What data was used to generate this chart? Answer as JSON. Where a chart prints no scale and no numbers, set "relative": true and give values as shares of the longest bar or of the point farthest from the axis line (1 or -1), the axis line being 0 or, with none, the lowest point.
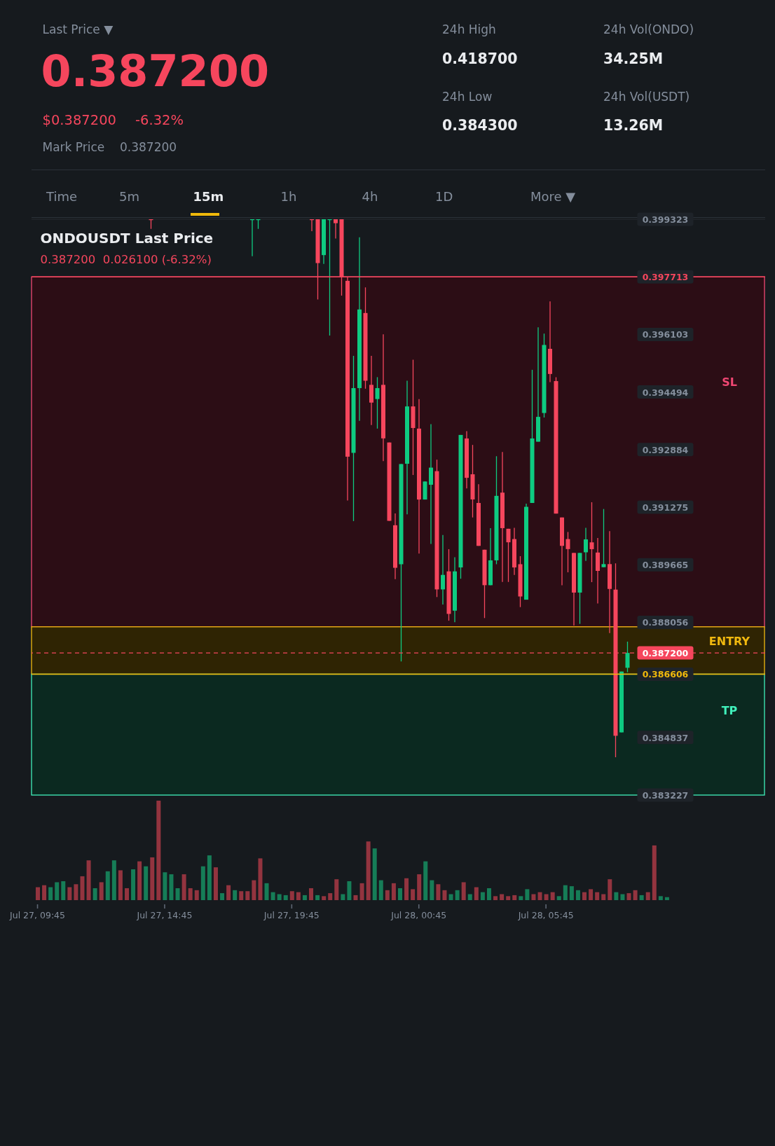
{
  "chart_data": [
    {
      "type": "other",
      "annotations": [
        "Last Price ▼",
        "0.387200",
        "$0.387200",
        "-6.32%",
        "Mark Price",
        "0.387200",
        "24h High",
        "0.418700",
        "24h Vol(ONDO)",
        "34.25M",
        "24h Low",
        "0.384300",
        "24h Vol(USDT)",
        "13.26M",
        "Time",
        "5m",
        "15m",
        "1h",
        "4h",
        "1D",
        "More ▼"
      ]
    },
    {
      "type": "candlestick",
      "title": "ONDOUSDT Last Price",
      "subtitle": "0.387200  0.026100 (-6.32%)",
      "categories": [
        null,
        null,
        null,
        null,
        null,
        null,
        null,
        null,
        null,
        null,
        null,
        null,
        null,
        null,
        null,
        null,
        null,
        null,
        null,
        null,
        null,
        null,
        null,
        null,
        null,
        null,
        null,
        null,
        null,
        null,
        null,
        null,
        null,
        null,
        null,
        null,
        null,
        null,
        null,
        null,
        null,
        null,
        null,
        null,
        null,
        null,
        null,
        null,
        null,
        null,
        null,
        null,
        null,
        null,
        null,
        null,
        null,
        null,
        null,
        null,
        null,
        null,
        null,
        null,
        null,
        null,
        null,
        null,
        null,
        null,
        null,
        null,
        null,
        null,
        null,
        null,
        null,
        null,
        null,
        null,
        null,
        null,
        null,
        null,
        null,
        null,
        null,
        null,
        null,
        null,
        null,
        null,
        null,
        null,
        null,
        null,
        null,
        null,
        null,
        null
      ],
      "ohlc": [
        null,
        null,
        null,
        null,
        null,
        null,
        null,
        null,
        null,
        null,
        null,
        null,
        null,
        null,
        null,
        null,
        null,
        null,
        null,
        [
          0.399323,
          0.399323,
          0.399056,
          0.399323
        ],
        null,
        null,
        null,
        null,
        null,
        null,
        null,
        null,
        null,
        null,
        null,
        null,
        null,
        null,
        null,
        null,
        [
          0.399323,
          0.399323,
          0.398291,
          0.399323
        ],
        [
          0.399323,
          0.399323,
          0.399056,
          0.399323
        ],
        null,
        null,
        null,
        null,
        null,
        null,
        null,
        null,
        [
          0.399323,
          0.399323,
          0.39899,
          0.399323
        ],
        [
          0.399323,
          0.399323,
          0.397082,
          0.398098
        ],
        [
          0.398321,
          0.399323,
          0.398073,
          0.399323
        ],
        [
          0.399323,
          0.399323,
          0.396074,
          0.399323
        ],
        [
          0.399323,
          0.399323,
          0.398784,
          0.399213
        ],
        [
          0.399323,
          0.399323,
          0.397189,
          0.397709
        ],
        [
          0.397602,
          0.397709,
          0.391463,
          0.392686
        ],
        [
          0.392793,
          0.395503,
          0.390885,
          0.394603
        ],
        [
          0.394603,
          0.398817,
          0.393686,
          0.396801
        ],
        [
          0.396702,
          0.39742,
          0.394586,
          0.394809
        ],
        [
          0.394694,
          0.395503,
          0.39357,
          0.394198
        ],
        [
          0.394297,
          0.394909,
          0.393471,
          0.394603
        ],
        [
          0.394694,
          0.396107,
          0.392562,
          0.393198
        ],
        [
          0.393083,
          0.393083,
          0.390893,
          0.390893
        ],
        [
          0.390769,
          0.3911,
          0.389265,
          0.38958
        ],
        [
          0.389679,
          0.39248,
          0.38696,
          0.39248
        ],
        [
          0.392488,
          0.394809,
          0.391075,
          0.394091
        ],
        [
          0.394091,
          0.395396,
          0.392174,
          0.393488
        ],
        [
          0.393471,
          0.394297,
          0.389976,
          0.391488
        ],
        [
          0.391488,
          0.391992,
          0.391488,
          0.391992
        ],
        [
          0.391901,
          0.393595,
          0.390249,
          0.39238
        ],
        [
          0.392281,
          0.392603,
          0.388762,
          0.388976
        ],
        [
          0.388976,
          0.390497,
          0.388555,
          0.389381
        ],
        [
          0.38948,
          0.3901,
          0.388101,
          0.388291
        ],
        [
          0.388381,
          0.389877,
          0.388059,
          0.38948
        ],
        [
          0.38959,
          0.393294,
          0.389274,
          0.393294
        ],
        [
          0.393195,
          0.393402,
          0.391798,
          0.392095
        ],
        [
          0.392194,
          0.393015,
          0.390987,
          0.391491
        ],
        [
          0.391392,
          0.391915,
          0.390193,
          0.390193
        ],
        [
          0.390085,
          0.390085,
          0.388175,
          0.389094
        ],
        [
          0.389094,
          0.390689,
          0.389094,
          0.389788
        ],
        [
          0.389788,
          0.392699,
          0.38968,
          0.391591
        ],
        [
          0.391681,
          0.392816,
          0.389184,
          0.390689
        ],
        [
          0.390671,
          0.390671,
          0.389184,
          0.390293
        ],
        [
          0.390383,
          0.390698,
          0.389382,
          0.38959
        ],
        [
          0.38968,
          0.389905,
          0.388481,
          0.388778
        ],
        [
          0.388688,
          0.391374,
          0.388688,
          0.391284
        ],
        [
          0.391392,
          0.395115,
          0.391392,
          0.393195
        ],
        [
          0.393105,
          0.396304,
          0.393105,
          0.393799
        ],
        [
          0.393907,
          0.396124,
          0.393781,
          0.395809
        ],
        [
          0.395701,
          0.397026,
          0.394772,
          0.394998
        ],
        [
          0.394799,
          0.394907,
          0.391095,
          0.391095
        ],
        [
          0.390987,
          0.390987,
          0.389094,
          0.390193
        ],
        [
          0.390383,
          0.390581,
          0.389454,
          0.390103
        ],
        [
          0.389995,
          0.389995,
          0.387967,
          0.388887
        ],
        [
          0.388887,
          0.389995,
          0.388012,
          0.389995
        ],
        [
          0.390013,
          0.390698,
          0.38977,
          0.390374
        ],
        [
          0.390291,
          0.391413,
          0.389179,
          0.390101
        ],
        [
          0.390006,
          0.390415,
          0.388581,
          0.389493
        ],
        [
          0.389597,
          0.391223,
          0.389597,
          0.389683
        ],
        [
          0.389683,
          0.390605,
          0.387754,
          0.388989
        ],
        [
          0.38897,
          0.389702,
          0.384286,
          0.384884
        ],
        [
          0.384979,
          0.38668,
          0.384979,
          0.38668
        ],
        [
          0.386785,
          0.387516,
          0.386661,
          0.3872
        ]
      ],
      "colors": [
        null,
        null,
        null,
        null,
        null,
        null,
        null,
        null,
        null,
        null,
        null,
        null,
        null,
        null,
        null,
        null,
        null,
        null,
        null,
        "#f6465d",
        null,
        null,
        null,
        null,
        null,
        null,
        null,
        null,
        null,
        null,
        null,
        null,
        null,
        null,
        null,
        null,
        "#0ecb81",
        "#0ecb81",
        null,
        null,
        null,
        null,
        null,
        null,
        null,
        null,
        "#f6465d",
        "#f6465d",
        "#0ecb81",
        "#0ecb81",
        "#f6465d",
        "#f6465d",
        "#f6465d",
        "#0ecb81",
        "#0ecb81",
        "#f6465d",
        "#f6465d",
        "#0ecb81",
        "#f6465d",
        "#f6465d",
        "#f6465d",
        "#0ecb81",
        "#0ecb81",
        "#f6465d",
        "#f6465d",
        "#0ecb81",
        "#0ecb81",
        "#f6465d",
        "#0ecb81",
        "#f6465d",
        "#0ecb81",
        "#0ecb81",
        "#f6465d",
        "#f6465d",
        "#f6465d",
        "#f6465d",
        "#0ecb81",
        "#0ecb81",
        "#f6465d",
        "#f6465d",
        "#f6465d",
        "#f6465d",
        "#0ecb81",
        "#0ecb81",
        "#0ecb81",
        "#0ecb81",
        "#f6465d",
        "#f6465d",
        "#f6465d",
        "#f6465d",
        "#f6465d",
        "#0ecb81",
        "#0ecb81",
        "#f6465d",
        "#f6465d",
        "#0ecb81",
        "#f6465d",
        "#f6465d",
        "#0ecb81",
        "#0ecb81"
      ],
      "ylim": [
        0.383227,
        0.399323
      ],
      "yticks": [
        0.383227,
        0.384837,
        0.388056,
        0.389665,
        0.391275,
        0.392884,
        0.394494,
        0.396103,
        0.399323
      ],
      "grid": "y",
      "tick_labels": "y",
      "bands": [
        {
          "axis": "y",
          "from": 0.38793,
          "to": 0.397713,
          "label": "SL",
          "color": "#2c0d15"
        },
        {
          "axis": "y",
          "from": 0.386606,
          "to": 0.38793,
          "label": "ENTRY",
          "color": "#2f2403"
        },
        {
          "axis": "y",
          "from": 0.383227,
          "to": 0.386606,
          "label": "TP",
          "color": "#0b2920"
        }
      ],
      "ref_lines": [
        {
          "axis": "y",
          "value": 0.397713,
          "label": "0.397713",
          "color": "#f6465d"
        },
        {
          "axis": "y",
          "value": 0.386606,
          "label": "0.386606",
          "color": "#f0b90b"
        },
        {
          "axis": "y",
          "value": 0.3872,
          "label": "0.387200",
          "color": "#f6465d",
          "line_style": "dashed"
        }
      ]
    },
    {
      "type": "bar",
      "relative": true,
      "tick_labels": "x",
      "categories": [
        "Jul 27, 09:45",
        null,
        null,
        null,
        null,
        null,
        null,
        null,
        null,
        null,
        null,
        null,
        null,
        null,
        null,
        null,
        null,
        null,
        null,
        null,
        "Jul 27, 14:45",
        null,
        null,
        null,
        null,
        null,
        null,
        null,
        null,
        null,
        null,
        null,
        null,
        null,
        null,
        null,
        null,
        null,
        null,
        null,
        "Jul 27, 19:45",
        null,
        null,
        null,
        null,
        null,
        null,
        null,
        null,
        null,
        null,
        null,
        null,
        null,
        null,
        null,
        null,
        null,
        null,
        null,
        "Jul 28, 00:45",
        null,
        null,
        null,
        null,
        null,
        null,
        null,
        null,
        null,
        null,
        null,
        null,
        null,
        null,
        null,
        null,
        null,
        null,
        null,
        "Jul 28, 05:45",
        null,
        null,
        null,
        null,
        null,
        null,
        null,
        null,
        null,
        null,
        null,
        null,
        null,
        null,
        null,
        null,
        null,
        null,
        null
      ],
      "values": [
        0.13,
        0.15,
        0.13,
        0.18,
        0.19,
        0.13,
        0.16,
        0.24,
        0.4,
        0.12,
        0.18,
        0.29,
        0.4,
        0.3,
        0.12,
        0.31,
        0.39,
        0.34,
        0.43,
        1,
        0.28,
        0.26,
        0.12,
        0.26,
        0.12,
        0.1,
        0.34,
        0.45,
        0.33,
        0.07,
        0.15,
        0.1,
        0.09,
        0.09,
        0.2,
        0.42,
        0.17,
        0.08,
        0.06,
        0.05,
        0.09,
        0.08,
        0.05,
        0.12,
        0.05,
        0.04,
        0.07,
        0.21,
        0.06,
        0.19,
        0.05,
        0.17,
        0.59,
        0.52,
        0.2,
        0.1,
        0.17,
        0.12,
        0.22,
        0.11,
        0.26,
        0.39,
        0.2,
        0.16,
        0.1,
        0.06,
        0.1,
        0.18,
        0.06,
        0.13,
        0.08,
        0.12,
        0.04,
        0.06,
        0.04,
        0.05,
        0.04,
        0.11,
        0.06,
        0.08,
        0.06,
        0.08,
        0.04,
        0.15,
        0.14,
        0.1,
        0.08,
        0.11,
        0.08,
        0.06,
        0.21,
        0.08,
        0.06,
        0.07,
        0.1,
        0.05,
        0.08,
        0.55,
        0.04,
        0.03
      ],
      "colors": [
        "#93343f",
        "#93343f",
        "#167d57",
        "#167d57",
        "#167d57",
        "#93343f",
        "#93343f",
        "#93343f",
        "#93343f",
        "#167d57",
        "#93343f",
        "#167d57",
        "#167d57",
        "#93343f",
        "#93343f",
        "#167d57",
        "#93343f",
        "#167d57",
        "#93343f",
        "#93343f",
        "#167d57",
        "#167d57",
        "#167d57",
        "#93343f",
        "#93343f",
        "#93343f",
        "#167d57",
        "#167d57",
        "#93343f",
        "#167d57",
        "#93343f",
        "#167d57",
        "#93343f",
        "#93343f",
        "#93343f",
        "#93343f",
        "#167d57",
        "#167d57",
        "#167d57",
        "#167d57",
        "#93343f",
        "#93343f",
        "#167d57",
        "#93343f",
        "#167d57",
        "#93343f",
        "#93343f",
        "#93343f",
        "#167d57",
        "#167d57",
        "#93343f",
        "#93343f",
        "#93343f",
        "#167d57",
        "#167d57",
        "#93343f",
        "#93343f",
        "#167d57",
        "#93343f",
        "#93343f",
        "#93343f",
        "#167d57",
        "#167d57",
        "#93343f",
        "#93343f",
        "#167d57",
        "#167d57",
        "#93343f",
        "#167d57",
        "#93343f",
        "#167d57",
        "#167d57",
        "#93343f",
        "#93343f",
        "#93343f",
        "#93343f",
        "#167d57",
        "#167d57",
        "#93343f",
        "#93343f",
        "#93343f",
        "#93343f",
        "#167d57",
        "#167d57",
        "#167d57",
        "#167d57",
        "#93343f",
        "#93343f",
        "#93343f",
        "#93343f",
        "#93343f",
        "#167d57",
        "#167d57",
        "#93343f",
        "#93343f",
        "#167d57",
        "#93343f",
        "#93343f",
        "#167d57",
        "#167d57"
      ]
    }
  ]
}
